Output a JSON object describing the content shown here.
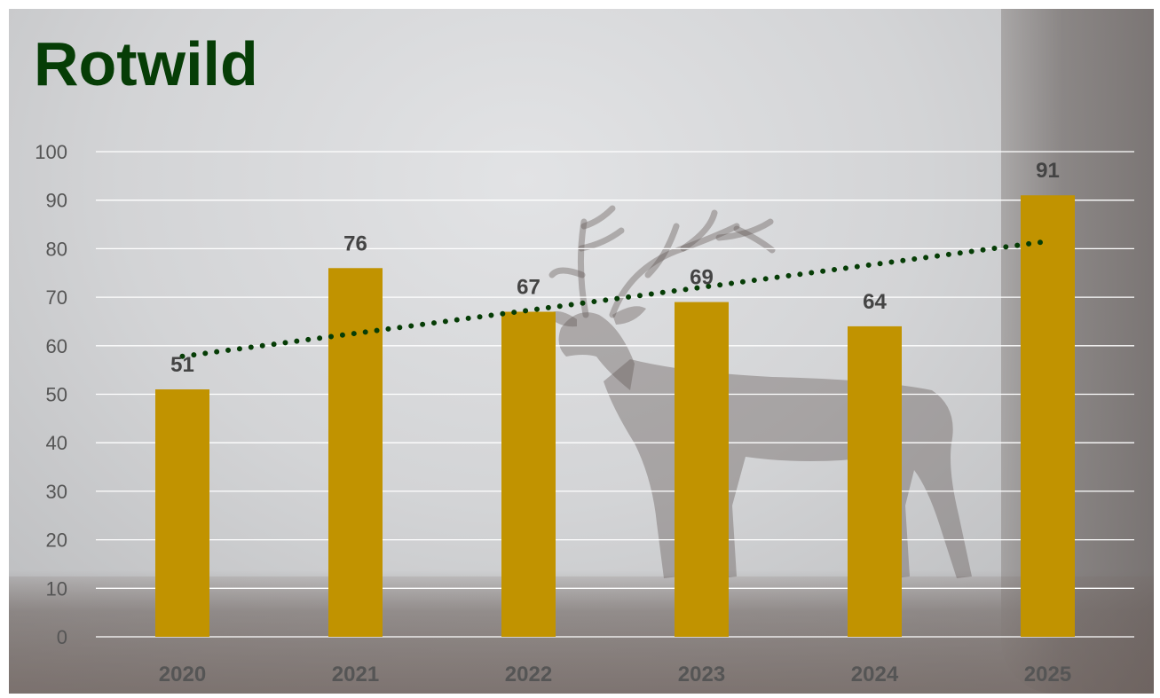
{
  "chart_data": {
    "type": "bar",
    "title": "Rotwild",
    "categories": [
      "2020",
      "2021",
      "2022",
      "2023",
      "2024",
      "2025"
    ],
    "values": [
      51,
      76,
      67,
      69,
      64,
      91
    ],
    "ylim": [
      0,
      100
    ],
    "yticks": [
      0,
      10,
      20,
      30,
      40,
      50,
      60,
      70,
      80,
      90,
      100
    ],
    "grid": true,
    "data_labels": true,
    "trendline": {
      "type": "linear",
      "style": "dotted",
      "color": "#063d06"
    },
    "bar_color": "#c19300",
    "title_color": "#063d06"
  }
}
